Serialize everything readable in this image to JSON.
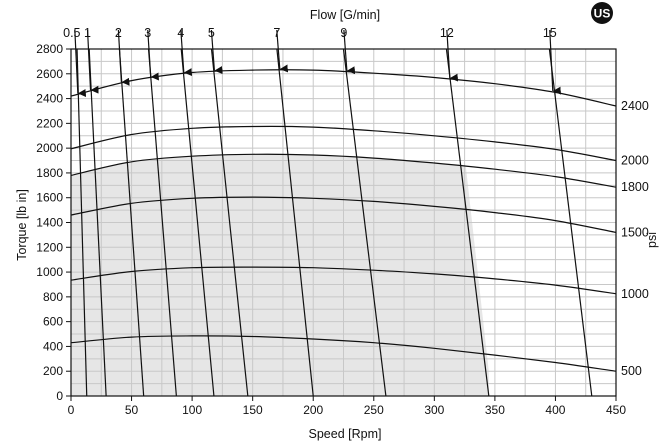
{
  "badge": {
    "text": "US",
    "color": "#111111"
  },
  "chart_data": {
    "type": "line",
    "top_axis_label": "Flow [G/min]",
    "xlabel": "Speed [Rpm]",
    "ylabel": "Torque [lb in]",
    "y2label": "psi",
    "xlim": [
      0,
      450
    ],
    "ylim": [
      0,
      2800
    ],
    "xticks": [
      "0",
      "50",
      "100",
      "150",
      "200",
      "250",
      "300",
      "350",
      "400",
      "450"
    ],
    "yticks": [
      "0",
      "200",
      "400",
      "600",
      "800",
      "1000",
      "1200",
      "1400",
      "1600",
      "1800",
      "2000",
      "2200",
      "2400",
      "2600",
      "2800"
    ],
    "grid": true,
    "shaded_region_color": "#e6e6e6",
    "pressure_curves": [
      {
        "name": "2400",
        "x": [
          0,
          50,
          100,
          150,
          200,
          250,
          300,
          350,
          400,
          450
        ],
        "y": [
          2420,
          2545,
          2610,
          2630,
          2630,
          2605,
          2570,
          2520,
          2450,
          2340
        ]
      },
      {
        "name": "2000",
        "x": [
          0,
          50,
          100,
          150,
          200,
          250,
          300,
          350,
          400,
          450
        ],
        "y": [
          1995,
          2110,
          2160,
          2175,
          2170,
          2140,
          2100,
          2050,
          1990,
          1900
        ]
      },
      {
        "name": "1800",
        "x": [
          0,
          50,
          100,
          150,
          200,
          250,
          300,
          350,
          400,
          450
        ],
        "y": [
          1780,
          1890,
          1935,
          1950,
          1945,
          1920,
          1880,
          1830,
          1770,
          1685
        ]
      },
      {
        "name": "1500",
        "x": [
          0,
          50,
          100,
          150,
          200,
          250,
          300,
          350,
          400,
          450
        ],
        "y": [
          1460,
          1555,
          1595,
          1605,
          1595,
          1570,
          1530,
          1480,
          1415,
          1320
        ]
      },
      {
        "name": "1000",
        "x": [
          0,
          50,
          100,
          150,
          200,
          250,
          300,
          350,
          400,
          450
        ],
        "y": [
          935,
          1005,
          1035,
          1040,
          1035,
          1015,
          985,
          945,
          895,
          825
        ]
      },
      {
        "name": "500",
        "x": [
          0,
          50,
          100,
          150,
          200,
          250,
          300,
          350,
          400,
          450
        ],
        "y": [
          430,
          475,
          485,
          480,
          460,
          430,
          385,
          330,
          270,
          200
        ]
      }
    ],
    "flow_lines": [
      {
        "name": "0.5",
        "x": [
          5,
          13
        ],
        "y": [
          2800,
          0
        ]
      },
      {
        "name": "1",
        "x": [
          15,
          29
        ],
        "y": [
          2800,
          0
        ]
      },
      {
        "name": "2",
        "x": [
          40,
          60
        ],
        "y": [
          2800,
          0
        ]
      },
      {
        "name": "3",
        "x": [
          64,
          87
        ],
        "y": [
          2800,
          0
        ]
      },
      {
        "name": "4",
        "x": [
          91,
          118
        ],
        "y": [
          2800,
          0
        ]
      },
      {
        "name": "5",
        "x": [
          116,
          146
        ],
        "y": [
          2800,
          0
        ]
      },
      {
        "name": "7",
        "x": [
          170,
          200
        ],
        "y": [
          2800,
          0
        ]
      },
      {
        "name": "9",
        "x": [
          225,
          260
        ],
        "y": [
          2800,
          0
        ]
      },
      {
        "name": "12",
        "x": [
          310,
          345
        ],
        "y": [
          2800,
          0
        ]
      },
      {
        "name": "15",
        "x": [
          395,
          430
        ],
        "y": [
          2800,
          0
        ]
      }
    ],
    "shaded_region": {
      "x": [
        0,
        0,
        50,
        100,
        150,
        200,
        250,
        300,
        326,
        345,
        345
      ],
      "y": [
        0,
        1780,
        1890,
        1935,
        1950,
        1945,
        1920,
        1880,
        1855,
        200,
        0
      ]
    }
  }
}
